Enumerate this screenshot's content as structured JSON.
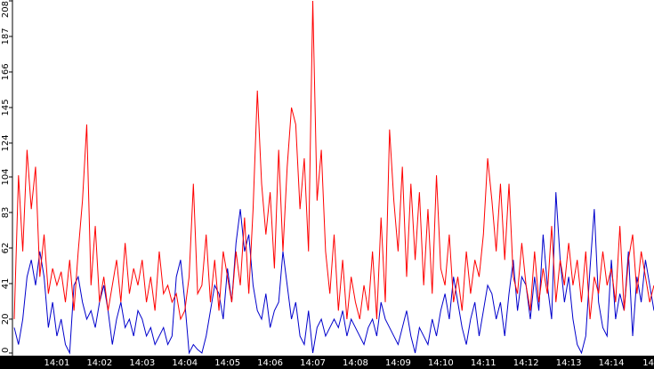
{
  "chart_data": {
    "type": "line",
    "categories": [
      null,
      null,
      null,
      null,
      null,
      null,
      null,
      null,
      null,
      null,
      "14:01",
      null,
      null,
      null,
      null,
      null,
      null,
      null,
      null,
      null,
      "14:02",
      null,
      null,
      null,
      null,
      null,
      null,
      null,
      null,
      null,
      "14:03",
      null,
      null,
      null,
      null,
      null,
      null,
      null,
      null,
      null,
      "14:04",
      null,
      null,
      null,
      null,
      null,
      null,
      null,
      null,
      null,
      "14:05",
      null,
      null,
      null,
      null,
      null,
      null,
      null,
      null,
      null,
      "14:06",
      null,
      null,
      null,
      null,
      null,
      null,
      null,
      null,
      null,
      "14:07",
      null,
      null,
      null,
      null,
      null,
      null,
      null,
      null,
      null,
      "14:08",
      null,
      null,
      null,
      null,
      null,
      null,
      null,
      null,
      null,
      "14:09",
      null,
      null,
      null,
      null,
      null,
      null,
      null,
      null,
      null,
      "14:10",
      null,
      null,
      null,
      null,
      null,
      null,
      null,
      null,
      null,
      "14:11",
      null,
      null,
      null,
      null,
      null,
      null,
      null,
      null,
      null,
      "14:12",
      null,
      null,
      null,
      null,
      null,
      null,
      null,
      null,
      null,
      "14:13",
      null,
      null,
      null,
      null,
      null,
      null,
      null,
      null,
      null,
      "14:14",
      null,
      null,
      null,
      null,
      null,
      null,
      null,
      null,
      null,
      "14"
    ],
    "series": [
      {
        "color": "#ff0000",
        "values": [
          20,
          105,
          60,
          120,
          85,
          110,
          45,
          70,
          35,
          50,
          40,
          48,
          30,
          55,
          25,
          60,
          90,
          135,
          40,
          75,
          30,
          45,
          25,
          40,
          55,
          30,
          65,
          35,
          50,
          40,
          55,
          30,
          45,
          25,
          60,
          35,
          40,
          30,
          35,
          20,
          25,
          45,
          100,
          35,
          40,
          70,
          30,
          55,
          25,
          60,
          45,
          30,
          60,
          40,
          80,
          35,
          85,
          155,
          100,
          70,
          95,
          50,
          120,
          60,
          110,
          145,
          135,
          85,
          115,
          60,
          208,
          90,
          120,
          60,
          35,
          70,
          25,
          55,
          20,
          45,
          30,
          20,
          40,
          25,
          60,
          20,
          80,
          30,
          132,
          90,
          60,
          110,
          45,
          100,
          55,
          95,
          40,
          85,
          35,
          105,
          50,
          40,
          70,
          30,
          45,
          25,
          60,
          35,
          55,
          45,
          70,
          115,
          90,
          60,
          100,
          55,
          100,
          45,
          35,
          65,
          40,
          25,
          60,
          30,
          50,
          35,
          75,
          30,
          55,
          40,
          65,
          40,
          55,
          30,
          60,
          20,
          45,
          35,
          60,
          40,
          50,
          30,
          75,
          25,
          55,
          70,
          35,
          60,
          45,
          30,
          40
        ]
      },
      {
        "color": "#0000cc",
        "values": [
          15,
          5,
          20,
          45,
          55,
          40,
          60,
          45,
          15,
          30,
          10,
          20,
          5,
          0,
          40,
          45,
          30,
          20,
          25,
          15,
          30,
          40,
          25,
          5,
          20,
          30,
          15,
          20,
          10,
          25,
          20,
          10,
          15,
          5,
          10,
          15,
          5,
          10,
          45,
          55,
          30,
          0,
          5,
          2,
          0,
          10,
          25,
          40,
          35,
          20,
          50,
          30,
          65,
          85,
          60,
          70,
          40,
          25,
          20,
          35,
          15,
          25,
          30,
          60,
          40,
          20,
          30,
          10,
          5,
          25,
          0,
          15,
          20,
          10,
          15,
          20,
          15,
          25,
          10,
          20,
          15,
          10,
          5,
          15,
          20,
          10,
          30,
          20,
          15,
          10,
          5,
          15,
          25,
          10,
          0,
          15,
          10,
          5,
          20,
          10,
          25,
          35,
          20,
          45,
          30,
          15,
          5,
          20,
          30,
          10,
          25,
          40,
          35,
          20,
          30,
          10,
          35,
          55,
          25,
          45,
          40,
          20,
          45,
          25,
          70,
          40,
          20,
          95,
          55,
          30,
          45,
          20,
          5,
          0,
          10,
          50,
          85,
          30,
          15,
          10,
          55,
          20,
          35,
          25,
          60,
          10,
          45,
          30,
          55,
          40,
          25
        ]
      }
    ],
    "ylim": [
      0,
      208
    ],
    "yticks": [
      0,
      20,
      41,
      62,
      83,
      104,
      124,
      145,
      166,
      187,
      208
    ]
  }
}
